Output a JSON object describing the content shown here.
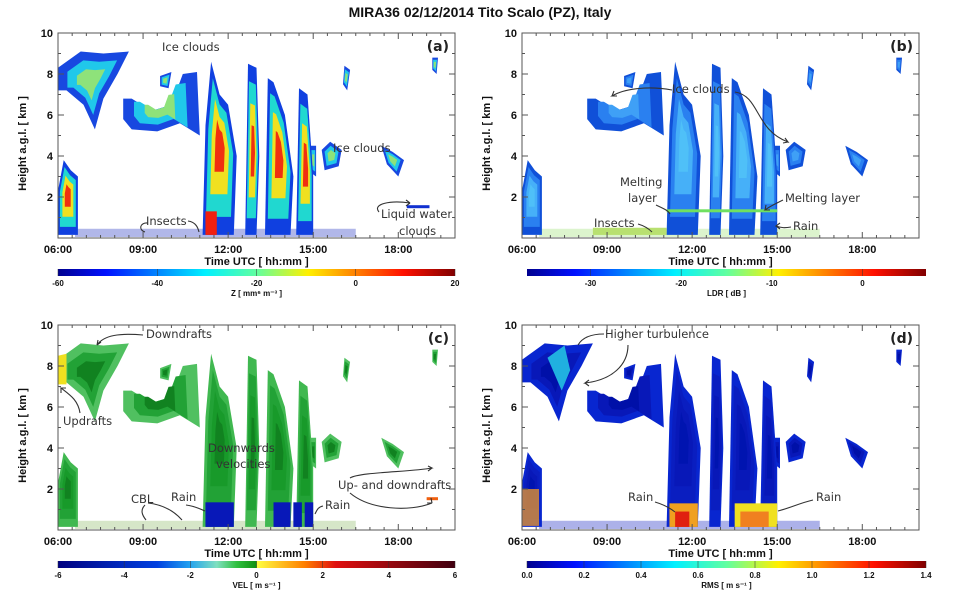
{
  "title": "MIRA36   02/12/2014   Tito Scalo (PZ), Italy",
  "chart_data": [
    {
      "type": "heatmap",
      "panel_label": "(a)",
      "xlabel": "Time UTC [ hh:mm ]",
      "ylabel": "Height a.g.l. [ km ]",
      "xlim": [
        "06:00",
        "20:00"
      ],
      "ylim": [
        0,
        10
      ],
      "xticks": [
        "06:00",
        "09:00",
        "12:00",
        "15:00",
        "18:00"
      ],
      "yticks": [
        "2",
        "4",
        "6",
        "8",
        "10"
      ],
      "colorbar": {
        "label": "Z [ mm⁶ m⁻³ ]",
        "range": [
          -60,
          20
        ],
        "ticks": [
          "-60",
          "-40",
          "-20",
          "0",
          "20"
        ],
        "colormap": "jet"
      },
      "annotations": [
        "Ice clouds",
        "Ice clouds",
        "Insects",
        "Liquid water",
        "clouds"
      ]
    },
    {
      "type": "heatmap",
      "panel_label": "(b)",
      "xlabel": "Time UTC [ hh:mm ]",
      "ylabel": "Height a.g.l. [ km ]",
      "xlim": [
        "06:00",
        "20:00"
      ],
      "ylim": [
        0,
        10
      ],
      "xticks": [
        "06:00",
        "09:00",
        "12:00",
        "15:00",
        "18:00"
      ],
      "yticks": [
        "2",
        "4",
        "6",
        "8",
        "10"
      ],
      "colorbar": {
        "label": "LDR [ dB ]",
        "range": [
          -37,
          7
        ],
        "ticks": [
          "-30",
          "-20",
          "-10",
          "0"
        ],
        "colormap": "jet"
      },
      "annotations": [
        "Ice clouds",
        "Melting",
        "layer",
        "Melting layer",
        "Insects",
        "Rain"
      ]
    },
    {
      "type": "heatmap",
      "panel_label": "(c)",
      "xlabel": "Time UTC [ hh:mm ]",
      "ylabel": "Height a.g.l. [ km ]",
      "xlim": [
        "06:00",
        "20:00"
      ],
      "ylim": [
        0,
        10
      ],
      "xticks": [
        "06:00",
        "09:00",
        "12:00",
        "15:00",
        "18:00"
      ],
      "yticks": [
        "2",
        "4",
        "6",
        "8",
        "10"
      ],
      "colorbar": {
        "label": "VEL [ m s⁻¹ ]",
        "range": [
          -6,
          6
        ],
        "ticks": [
          "-6",
          "-4",
          "-2",
          "0",
          "2",
          "4",
          "6"
        ],
        "colormap": "blue-green-yellow-red"
      },
      "annotations": [
        "Downdrafts",
        "Updrafts",
        "Downwards",
        "velocities",
        "CBL",
        "Rain",
        "Rain",
        "Up- and downdrafts"
      ]
    },
    {
      "type": "heatmap",
      "panel_label": "(d)",
      "xlabel": "Time UTC [ hh:mm ]",
      "ylabel": "Height a.g.l. [ km ]",
      "xlim": [
        "06:00",
        "20:00"
      ],
      "ylim": [
        0,
        10
      ],
      "xticks": [
        "06:00",
        "09:00",
        "12:00",
        "15:00",
        "18:00"
      ],
      "yticks": [
        "2",
        "4",
        "6",
        "8",
        "10"
      ],
      "colorbar": {
        "label": "RMS [ m s⁻¹ ]",
        "range": [
          0,
          1.4
        ],
        "ticks": [
          "0.0",
          "0.2",
          "0.4",
          "0.6",
          "0.8",
          "1.0",
          "1.2",
          "1.4"
        ],
        "colormap": "jet"
      },
      "annotations": [
        "Higher turbulence",
        "Rain",
        "Rain"
      ]
    }
  ]
}
